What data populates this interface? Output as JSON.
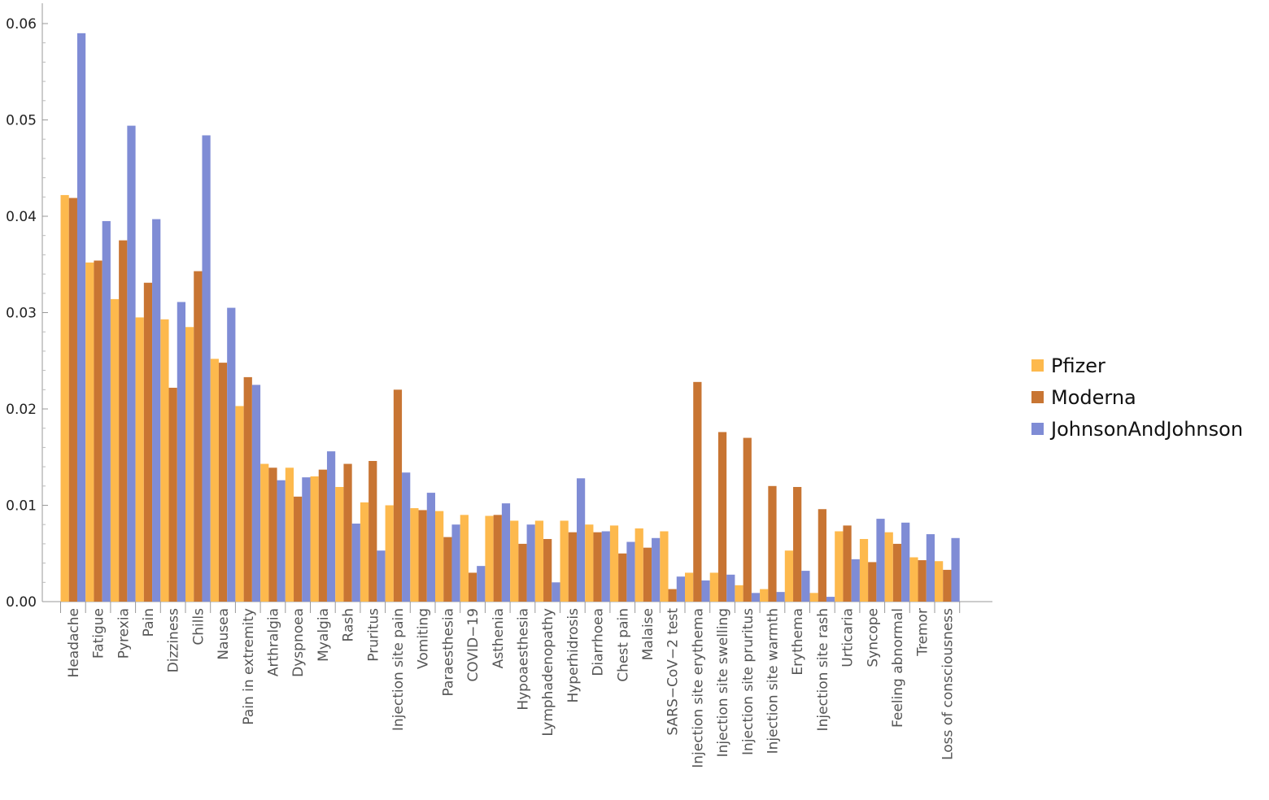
{
  "chart_data": {
    "type": "bar",
    "title": "",
    "xlabel": "",
    "ylabel": "",
    "ylim": [
      0,
      0.06
    ],
    "yticks": [
      "0.00",
      "0.01",
      "0.02",
      "0.03",
      "0.04",
      "0.05",
      "0.06"
    ],
    "legend_position": "right",
    "categories": [
      "Headache",
      "Fatigue",
      "Pyrexia",
      "Pain",
      "Dizziness",
      "Chills",
      "Nausea",
      "Pain in extremity",
      "Arthralgia",
      "Dyspnoea",
      "Myalgia",
      "Rash",
      "Pruritus",
      "Injection site pain",
      "Vomiting",
      "Paraesthesia",
      "COVID−19",
      "Asthenia",
      "Hypoaesthesia",
      "Lymphadenopathy",
      "Hyperhidrosis",
      "Diarrhoea",
      "Chest pain",
      "Malaise",
      "SARS−CoV−2 test",
      "Injection site erythema",
      "Injection site swelling",
      "Injection site pruritus",
      "Injection site warmth",
      "Erythema",
      "Injection site rash",
      "Urticaria",
      "Syncope",
      "Feeling abnormal",
      "Tremor",
      "Loss of consciousness"
    ],
    "series": [
      {
        "name": "Pfizer",
        "color": "#FDB94D",
        "values": [
          0.0422,
          0.0352,
          0.0314,
          0.0295,
          0.0293,
          0.0285,
          0.0252,
          0.0203,
          0.0143,
          0.0139,
          0.013,
          0.0119,
          0.0103,
          0.01,
          0.0097,
          0.0094,
          0.009,
          0.0089,
          0.0084,
          0.0084,
          0.0084,
          0.008,
          0.0079,
          0.0076,
          0.0073,
          0.003,
          0.003,
          0.0017,
          0.0013,
          0.0053,
          0.0009,
          0.0073,
          0.0065,
          0.0072,
          0.0046,
          0.0042
        ]
      },
      {
        "name": "Moderna",
        "color": "#C87533",
        "values": [
          0.0419,
          0.0354,
          0.0375,
          0.0331,
          0.0222,
          0.0343,
          0.0248,
          0.0233,
          0.0139,
          0.0109,
          0.0137,
          0.0143,
          0.0146,
          0.022,
          0.0095,
          0.0067,
          0.003,
          0.009,
          0.006,
          0.0065,
          0.0072,
          0.0072,
          0.005,
          0.0056,
          0.0013,
          0.0228,
          0.0176,
          0.017,
          0.012,
          0.0119,
          0.0096,
          0.0079,
          0.0041,
          0.006,
          0.0043,
          0.0033
        ]
      },
      {
        "name": "JohnsonAndJohnson",
        "color": "#7F8CD5",
        "values": [
          0.059,
          0.0395,
          0.0494,
          0.0397,
          0.0311,
          0.0484,
          0.0305,
          0.0225,
          0.0126,
          0.0129,
          0.0156,
          0.0081,
          0.0053,
          0.0134,
          0.0113,
          0.008,
          0.0037,
          0.0102,
          0.008,
          0.002,
          0.0128,
          0.0073,
          0.0062,
          0.0066,
          0.0026,
          0.0022,
          0.0028,
          0.0009,
          0.001,
          0.0032,
          0.0005,
          0.0044,
          0.0086,
          0.0082,
          0.007,
          0.0066
        ]
      }
    ]
  }
}
